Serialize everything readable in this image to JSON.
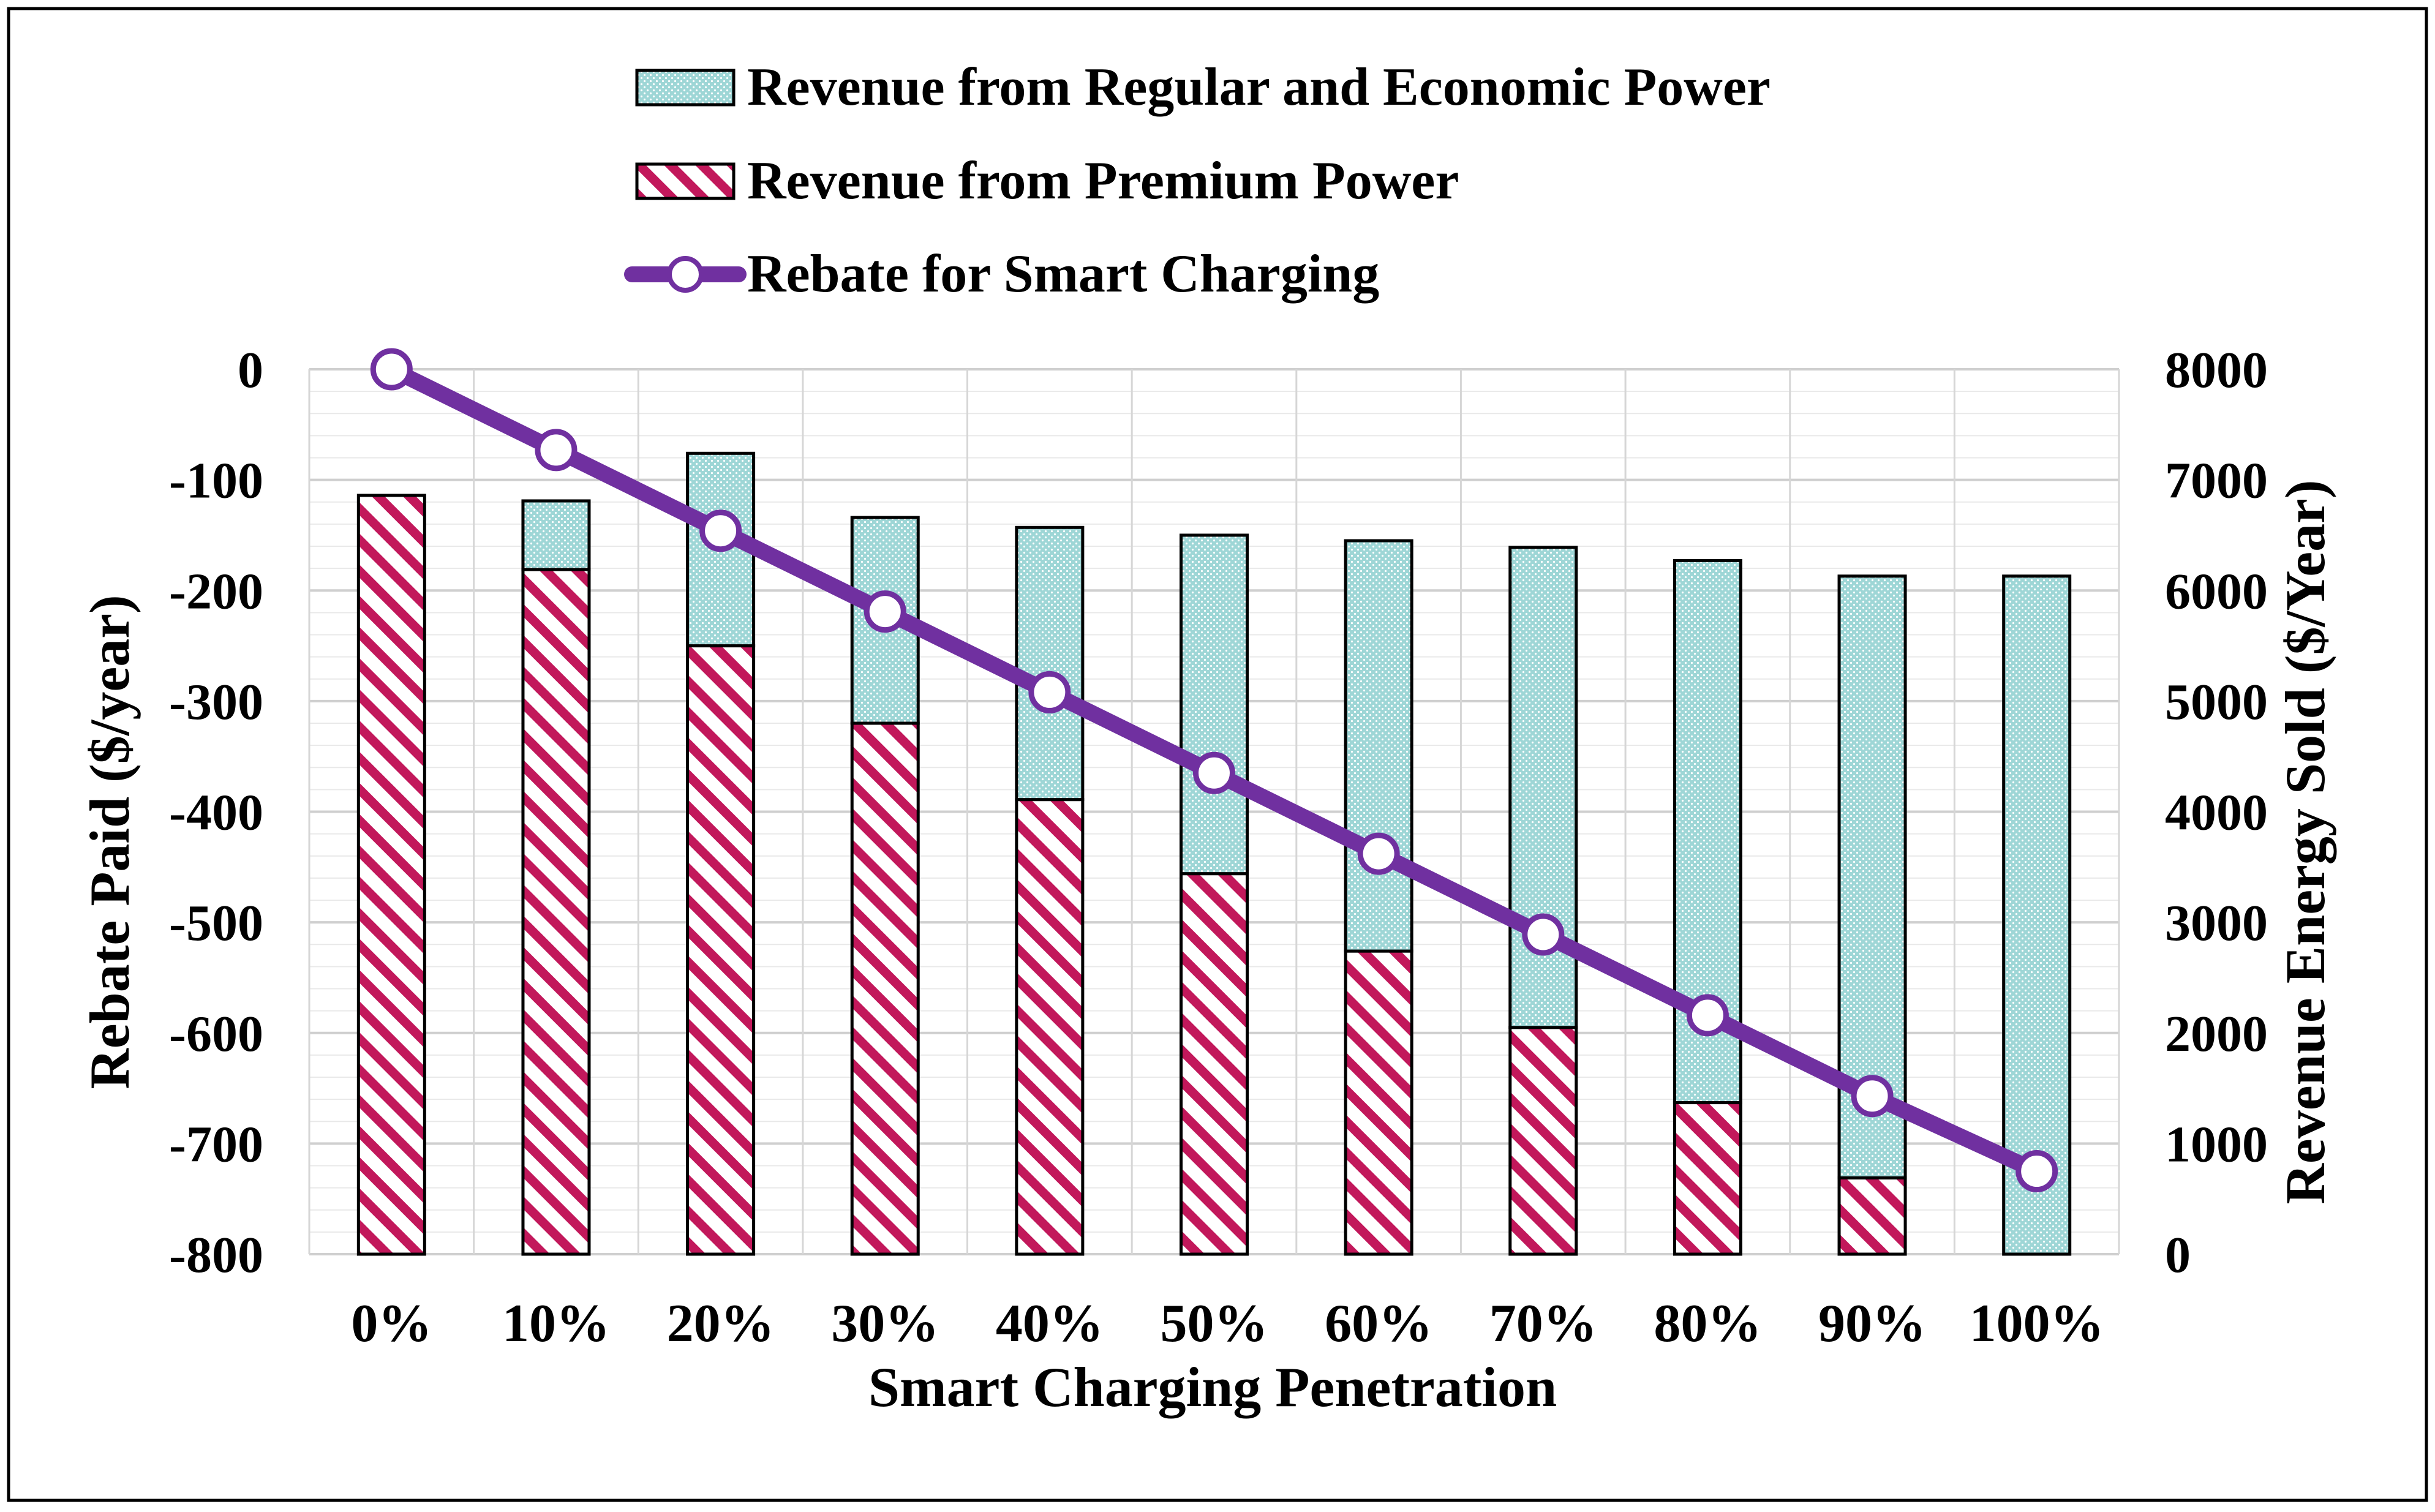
{
  "chart_data": {
    "type": "bar",
    "subtype": "stacked-bar-with-line-secondary-axis",
    "xlabel": "Smart Charging Penetration",
    "ylabel_left": "Rebate Paid ($/year)",
    "ylabel_right": "Revenue Energy Sold ($/Year)",
    "categories": [
      "0%",
      "10%",
      "20%",
      "30%",
      "40%",
      "50%",
      "60%",
      "70%",
      "80%",
      "90%",
      "100%"
    ],
    "ylim_left": [
      -800,
      0
    ],
    "yticks_left": [
      0,
      -100,
      -200,
      -300,
      -400,
      -500,
      -600,
      -700,
      -800
    ],
    "ylim_right": [
      0,
      8000
    ],
    "yticks_right": [
      8000,
      7000,
      6000,
      5000,
      4000,
      3000,
      2000,
      1000,
      0
    ],
    "grid": true,
    "legend_position": "top",
    "series": [
      {
        "name": "Revenue from Regular and Economic Power",
        "kind": "bar",
        "axis": "right",
        "stack": "revenue",
        "pattern": "dotted",
        "color": "#9ed6d6",
        "values": [
          0,
          620,
          1740,
          1860,
          2460,
          3060,
          3710,
          4340,
          4900,
          5440,
          6130
        ]
      },
      {
        "name": "Revenue from Premium Power",
        "kind": "bar",
        "axis": "right",
        "stack": "revenue",
        "pattern": "diagonal-hatch",
        "color": "#c2185b",
        "values": [
          6860,
          6190,
          5500,
          4800,
          4110,
          3440,
          2740,
          2050,
          1370,
          690,
          0
        ]
      },
      {
        "name": "Rebate for Smart Charging",
        "kind": "line",
        "axis": "left",
        "color": "#7030a0",
        "marker": "circle",
        "values": [
          0,
          -73,
          -146,
          -219,
          -292,
          -365,
          -438,
          -511,
          -584,
          -657,
          -725
        ]
      }
    ]
  }
}
